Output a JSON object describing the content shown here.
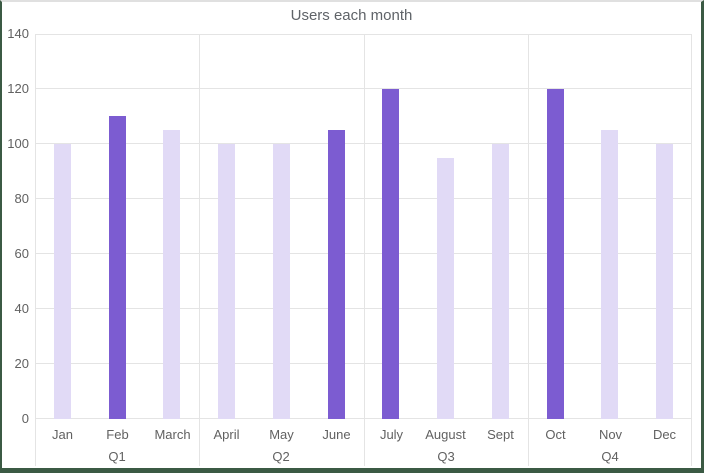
{
  "frame": {
    "border_color": "#3b5a44",
    "top_edge_color": "#e0e0e0"
  },
  "chart_data": {
    "type": "bar",
    "title": "Users each month",
    "categories": [
      "Jan",
      "Feb",
      "March",
      "April",
      "May",
      "June",
      "July",
      "August",
      "Sept",
      "Oct",
      "Nov",
      "Dec"
    ],
    "values": [
      100,
      110,
      105,
      100,
      100,
      105,
      120,
      95,
      100,
      120,
      105,
      100
    ],
    "highlighted": [
      false,
      true,
      false,
      false,
      false,
      true,
      true,
      false,
      false,
      true,
      false,
      false
    ],
    "group_labels": [
      "Q1",
      "Q2",
      "Q3",
      "Q4"
    ],
    "months_per_group": 3,
    "yticks": [
      0,
      20,
      40,
      60,
      80,
      100,
      120,
      140
    ],
    "ylim": [
      0,
      140
    ],
    "xlabel": "",
    "ylabel": "",
    "grid": "horizontal gridlines with vertical quarter dividers",
    "legend": "none",
    "colors": {
      "bar": "#e1daf6",
      "bar_highlight": "#7c5cd1",
      "gridline": "#e4e4e4",
      "axis_text": "#616161",
      "title_text": "#5f6368"
    }
  }
}
